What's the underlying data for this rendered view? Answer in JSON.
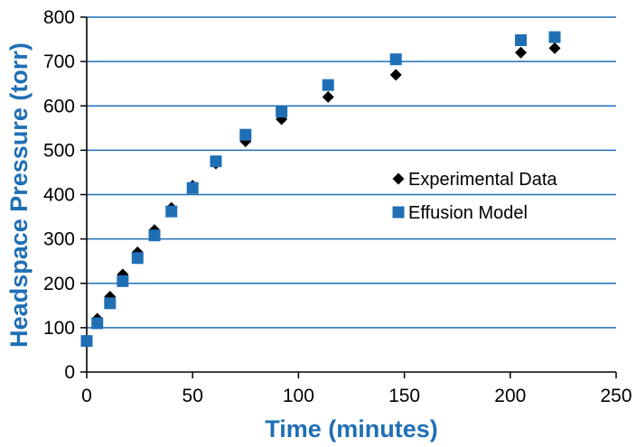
{
  "chart_data": {
    "type": "scatter",
    "title": "",
    "xlabel": "Time (minutes)",
    "ylabel": "Headspace Pressure (torr)",
    "xlim": [
      0,
      250
    ],
    "ylim": [
      0,
      800
    ],
    "x_ticks": [
      0,
      50,
      100,
      150,
      200,
      250
    ],
    "y_ticks": [
      0,
      100,
      200,
      300,
      400,
      500,
      600,
      700,
      800
    ],
    "grid": "horizontal",
    "legend_position": "center-right",
    "axis_title_color": "#1f6fb5",
    "series": [
      {
        "name": "Experimental Data",
        "marker": "diamond",
        "color": "#000000",
        "points": [
          {
            "x": 0,
            "y": 70
          },
          {
            "x": 5,
            "y": 120
          },
          {
            "x": 11,
            "y": 170
          },
          {
            "x": 17,
            "y": 220
          },
          {
            "x": 24,
            "y": 270
          },
          {
            "x": 32,
            "y": 320
          },
          {
            "x": 40,
            "y": 370
          },
          {
            "x": 50,
            "y": 420
          },
          {
            "x": 61,
            "y": 470
          },
          {
            "x": 75,
            "y": 520
          },
          {
            "x": 92,
            "y": 570
          },
          {
            "x": 114,
            "y": 620
          },
          {
            "x": 146,
            "y": 670
          },
          {
            "x": 205,
            "y": 720
          },
          {
            "x": 221,
            "y": 730
          }
        ]
      },
      {
        "name": "Effusion Model",
        "marker": "square",
        "color": "#1f6fb5",
        "points": [
          {
            "x": 0,
            "y": 70
          },
          {
            "x": 5,
            "y": 110
          },
          {
            "x": 11,
            "y": 155
          },
          {
            "x": 17,
            "y": 205
          },
          {
            "x": 24,
            "y": 257
          },
          {
            "x": 32,
            "y": 308
          },
          {
            "x": 40,
            "y": 362
          },
          {
            "x": 50,
            "y": 415
          },
          {
            "x": 61,
            "y": 475
          },
          {
            "x": 75,
            "y": 535
          },
          {
            "x": 92,
            "y": 587
          },
          {
            "x": 114,
            "y": 647
          },
          {
            "x": 146,
            "y": 705
          },
          {
            "x": 205,
            "y": 748
          },
          {
            "x": 221,
            "y": 755
          }
        ]
      }
    ]
  }
}
